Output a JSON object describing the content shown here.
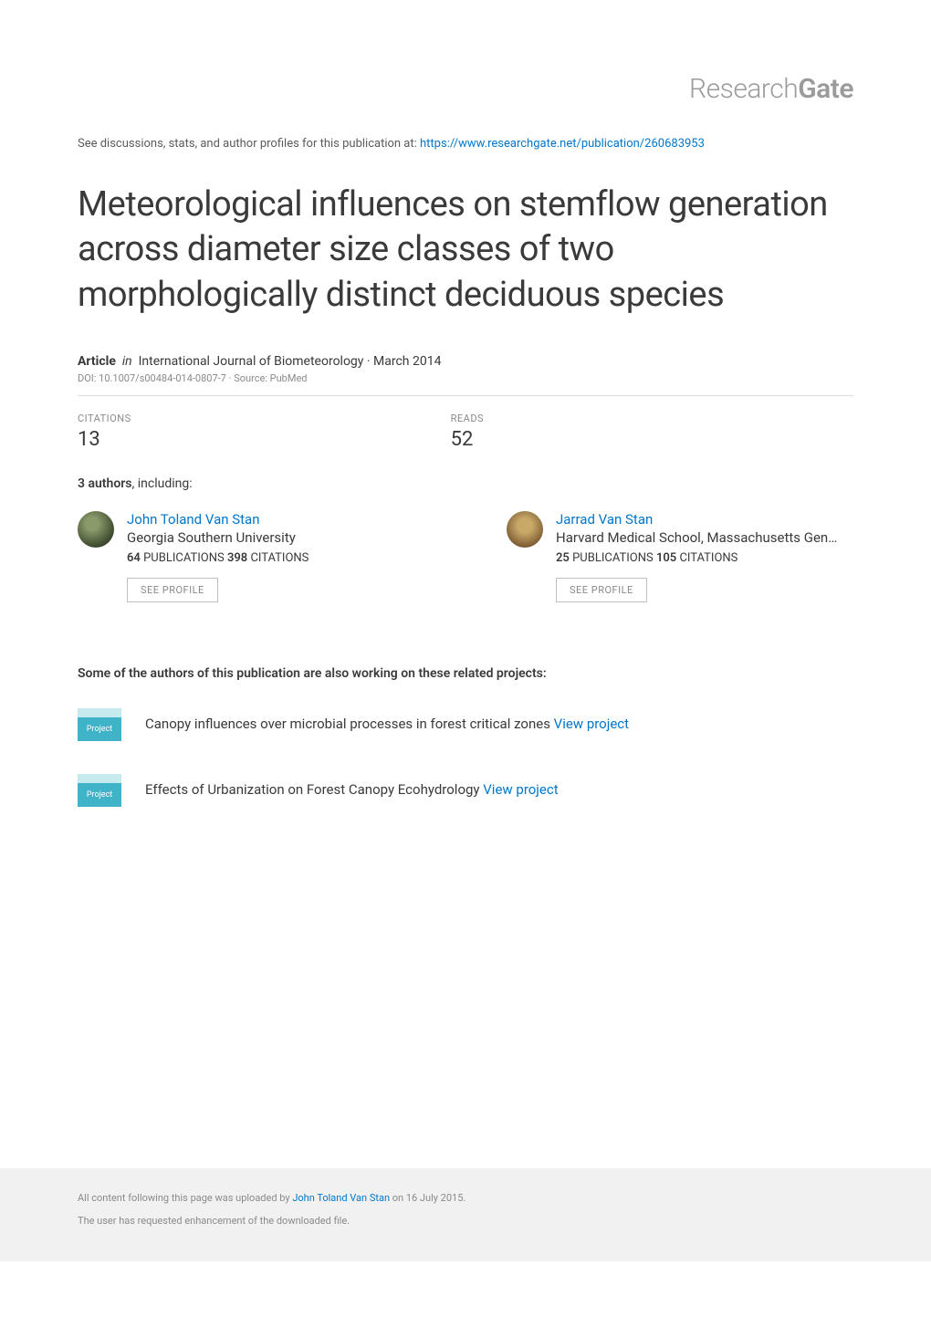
{
  "header": {
    "logo_prefix": "Research",
    "logo_suffix": "Gate",
    "discussion_prefix": "See discussions, stats, and author profiles for this publication at: ",
    "discussion_url": "https://www.researchgate.net/publication/260683953"
  },
  "title": "Meteorological influences on stemflow generation across diameter size classes of two morphologically distinct deciduous species",
  "article_meta": {
    "type": "Article",
    "in_word": "in",
    "journal": "International Journal of Biometeorology · March 2014",
    "doi": "DOI: 10.1007/s00484-014-0807-7 · Source: PubMed"
  },
  "stats": {
    "citations_label": "CITATIONS",
    "citations_value": "13",
    "reads_label": "READS",
    "reads_value": "52"
  },
  "authors_header": {
    "count": "3 authors",
    "suffix": ", including:"
  },
  "authors": [
    {
      "name": "John Toland Van Stan",
      "affiliation": "Georgia Southern University",
      "pubs_count": "64",
      "pubs_label": " PUBLICATIONS   ",
      "cits_count": "398",
      "cits_label": " CITATIONS",
      "see_profile": "SEE PROFILE"
    },
    {
      "name": "Jarrad Van Stan",
      "affiliation": "Harvard Medical School, Massachusetts Gen…",
      "pubs_count": "25",
      "pubs_label": " PUBLICATIONS   ",
      "cits_count": "105",
      "cits_label": " CITATIONS",
      "see_profile": "SEE PROFILE"
    }
  ],
  "related": {
    "header": "Some of the authors of this publication are also working on these related projects:",
    "badge_label": "Project",
    "projects": [
      {
        "text": "Canopy influences over microbial processes in forest critical zones ",
        "link": "View project"
      },
      {
        "text": "Effects of Urbanization on Forest Canopy Ecohydrology ",
        "link": "View project"
      }
    ]
  },
  "footer": {
    "line1_prefix": "All content following this page was uploaded by ",
    "line1_author": "John Toland Van Stan",
    "line1_suffix": " on 16 July 2015.",
    "line2": "The user has requested enhancement of the downloaded file."
  },
  "colors": {
    "link": "#0077cc",
    "text_primary": "#3a3a3a",
    "text_muted": "#8a8a8a",
    "border": "#dddddd",
    "badge_bg": "#40b3c9",
    "badge_top": "#c7eaef",
    "footer_bg": "#f1f1f1"
  }
}
